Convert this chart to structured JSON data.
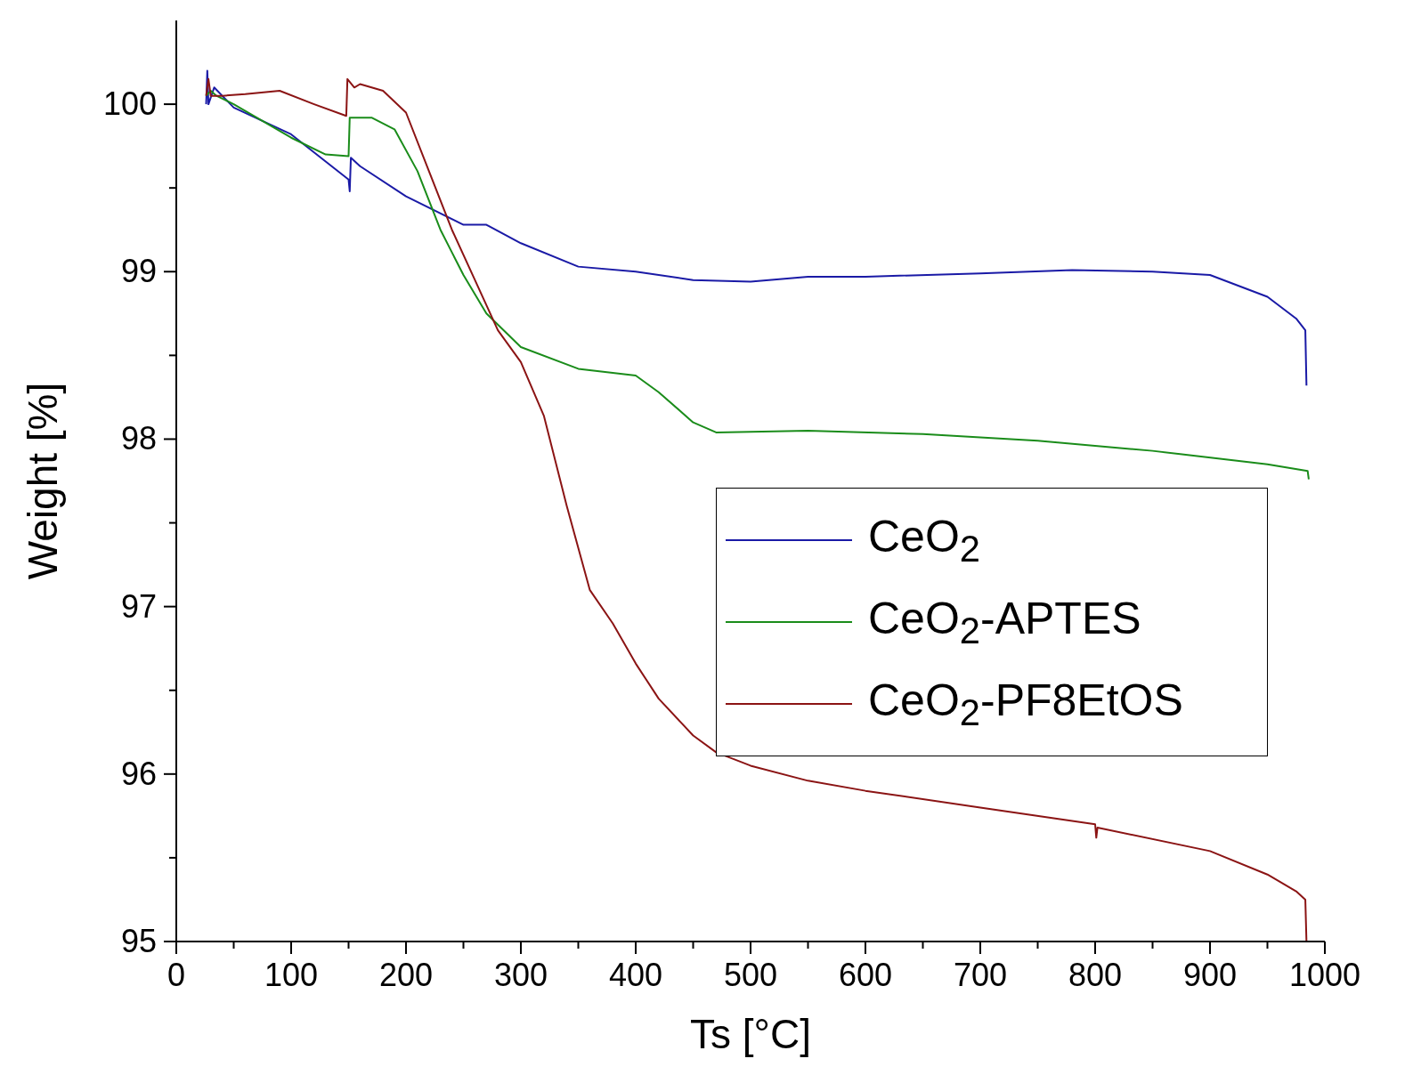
{
  "chart_data": {
    "type": "line",
    "xlabel": "Ts [°C]",
    "ylabel": "Weight [%]",
    "xlim": [
      0,
      1000
    ],
    "ylim": [
      95,
      100.5
    ],
    "xticks": [
      0,
      {
        "value": 50,
        "label": null
      },
      100,
      {
        "value": 150,
        "label": null
      },
      200,
      {
        "value": 250,
        "label": null
      },
      300,
      {
        "value": 350,
        "label": null
      },
      400,
      {
        "value": 450,
        "label": null
      },
      500,
      {
        "value": 550,
        "label": null
      },
      600,
      {
        "value": 650,
        "label": null
      },
      700,
      {
        "value": 750,
        "label": null
      },
      800,
      {
        "value": 850,
        "label": null
      },
      900,
      {
        "value": 950,
        "label": null
      },
      1000
    ],
    "yticks": [
      95,
      {
        "value": 95.5,
        "label": null
      },
      96,
      {
        "value": 96.5,
        "label": null
      },
      97,
      {
        "value": 97.5,
        "label": null
      },
      98,
      {
        "value": 98.5,
        "label": null
      },
      99,
      {
        "value": 99.5,
        "label": null
      },
      100
    ],
    "grid": false,
    "legend": "right",
    "marker": "none",
    "line_style": "solid",
    "series": [
      {
        "name": "CeO$_{2}$",
        "color": "#1a1aa6",
        "x": [
          26,
          27,
          28,
          33,
          40,
          50,
          100,
          150,
          151,
          152,
          160,
          200,
          250,
          270,
          300,
          350,
          400,
          450,
          500,
          550,
          600,
          700,
          780,
          850,
          900,
          950,
          975,
          983,
          984
        ],
        "values": [
          100.0,
          100.2,
          100.0,
          100.1,
          100.05,
          99.98,
          99.82,
          99.55,
          99.48,
          99.68,
          99.63,
          99.45,
          99.28,
          99.28,
          99.17,
          99.03,
          99.0,
          98.95,
          98.94,
          98.97,
          98.97,
          98.99,
          99.01,
          99.0,
          98.98,
          98.85,
          98.72,
          98.65,
          98.32
        ]
      },
      {
        "name": "CeO$_{2}$-APTES",
        "color": "#1a8c1a",
        "x": [
          26,
          30,
          35,
          50,
          100,
          130,
          150,
          151,
          170,
          190,
          210,
          230,
          250,
          270,
          300,
          350,
          400,
          420,
          450,
          470,
          550,
          650,
          750,
          850,
          950,
          985,
          986
        ],
        "values": [
          100.05,
          100.08,
          100.05,
          100.0,
          99.8,
          99.7,
          99.69,
          99.92,
          99.92,
          99.85,
          99.6,
          99.25,
          98.98,
          98.75,
          98.55,
          98.42,
          98.38,
          98.28,
          98.1,
          98.04,
          98.05,
          98.03,
          97.99,
          97.93,
          97.85,
          97.81,
          97.76
        ]
      },
      {
        "name": "CeO$_{2}$-PF8EtOS",
        "color": "#8b1414",
        "x": [
          26,
          28,
          30,
          40,
          60,
          90,
          120,
          148,
          149,
          155,
          160,
          180,
          200,
          220,
          240,
          260,
          280,
          300,
          320,
          340,
          360,
          380,
          400,
          420,
          450,
          470,
          500,
          550,
          600,
          700,
          800,
          801,
          802,
          900,
          950,
          975,
          983,
          984
        ],
        "values": [
          100.05,
          100.15,
          100.05,
          100.05,
          100.06,
          100.08,
          100.0,
          99.93,
          100.15,
          100.1,
          100.12,
          100.08,
          99.95,
          99.6,
          99.25,
          98.95,
          98.65,
          98.46,
          98.14,
          97.6,
          97.1,
          96.9,
          96.66,
          96.45,
          96.23,
          96.13,
          96.05,
          95.96,
          95.9,
          95.8,
          95.7,
          95.62,
          95.68,
          95.54,
          95.4,
          95.3,
          95.25,
          95.0
        ]
      }
    ]
  }
}
